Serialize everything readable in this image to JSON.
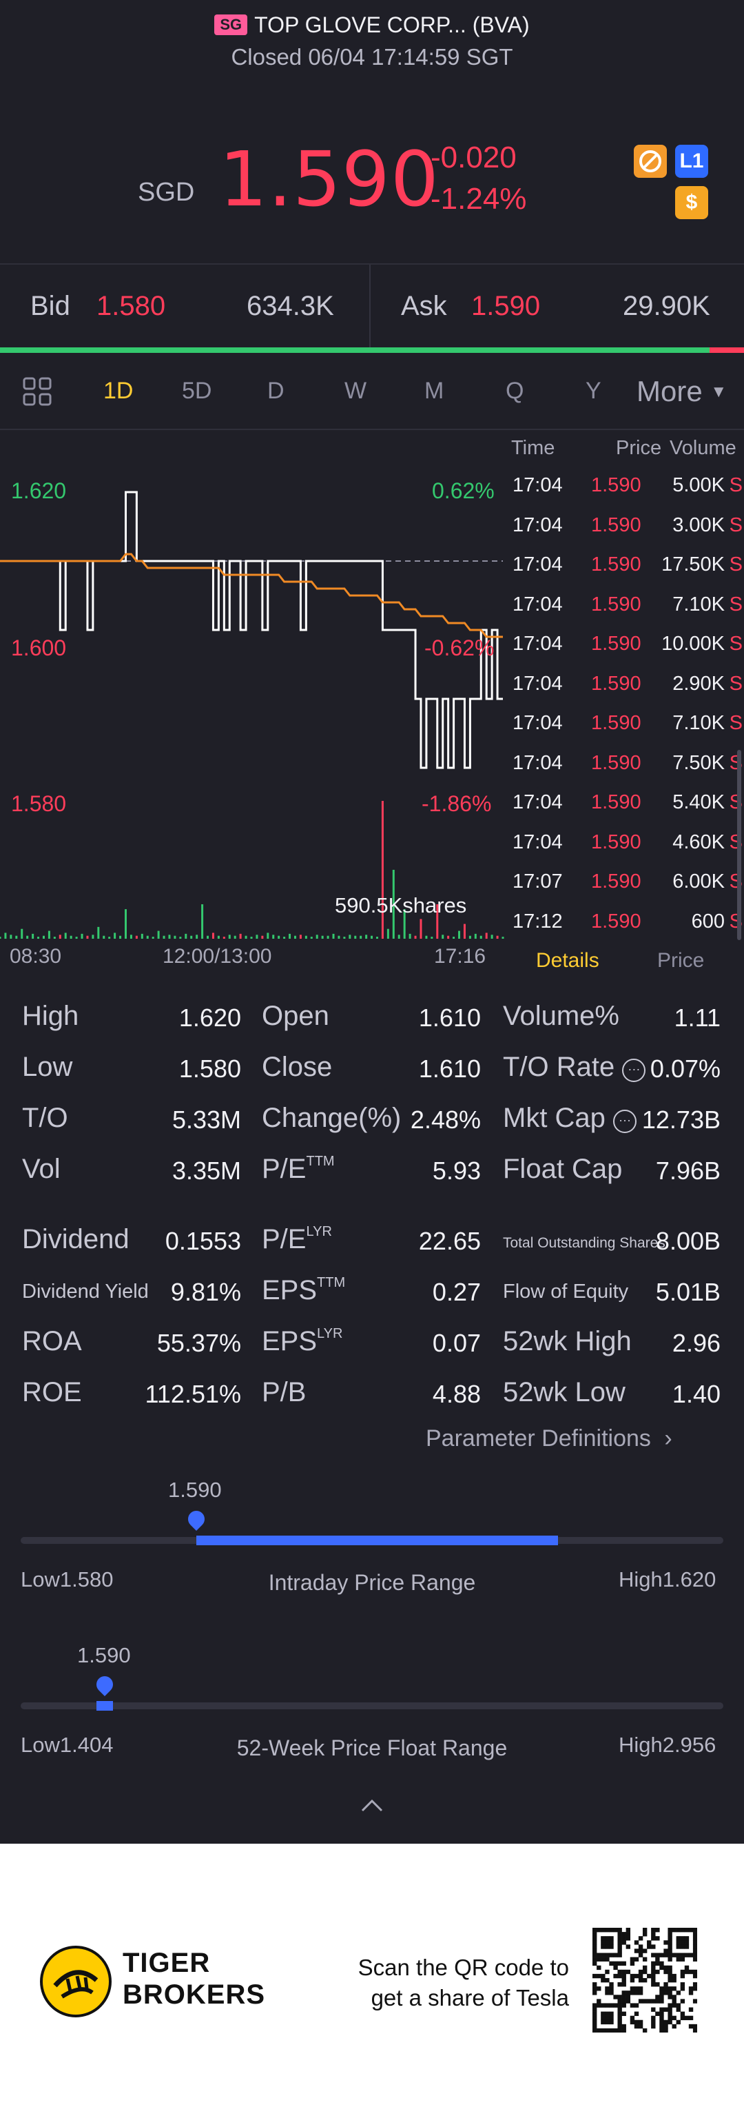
{
  "header": {
    "market_badge": "SG",
    "title": "TOP GLOVE CORP... (BVA)",
    "status": "Closed 06/04 17:14:59 SGT"
  },
  "quote": {
    "currency": "SGD",
    "price": "1.590",
    "change": "-0.020",
    "change_pct": "-1.24%",
    "badges": [
      {
        "icon": "no-short-icon",
        "text": ""
      },
      {
        "icon": "level1-icon",
        "text": "L1"
      },
      {
        "icon": "dollar-icon",
        "text": "$"
      }
    ]
  },
  "bid_ask": {
    "bid_label": "Bid",
    "bid_price": "1.580",
    "bid_size": "634.3K",
    "ask_label": "Ask",
    "ask_price": "1.590",
    "ask_size": "29.90K",
    "bid_share": 0.954
  },
  "tabs": {
    "items": [
      "1D",
      "5D",
      "D",
      "W",
      "M",
      "Q",
      "Y"
    ],
    "active": "1D",
    "more_label": "More"
  },
  "chart_data": {
    "type": "line",
    "y_labels": [
      "1.620",
      "1.600",
      "1.580"
    ],
    "pct_labels": [
      "0.62%",
      "-0.62%",
      "-1.86%"
    ],
    "x_labels": [
      "08:30",
      "12:00/13:00",
      "17:16"
    ],
    "ylim": [
      1.575,
      1.625
    ],
    "prev_close": 1.61,
    "volume_label": "590.5Kshares",
    "price_series": [
      1.61,
      1.61,
      1.61,
      1.61,
      1.61,
      1.61,
      1.61,
      1.61,
      1.61,
      1.61,
      1.61,
      1.6,
      1.61,
      1.61,
      1.61,
      1.61,
      1.6,
      1.61,
      1.61,
      1.61,
      1.61,
      1.61,
      1.61,
      1.62,
      1.62,
      1.61,
      1.61,
      1.61,
      1.61,
      1.61,
      1.61,
      1.61,
      1.61,
      1.61,
      1.61,
      1.61,
      1.61,
      1.61,
      1.61,
      1.6,
      1.61,
      1.6,
      1.61,
      1.61,
      1.6,
      1.61,
      1.61,
      1.61,
      1.6,
      1.61,
      1.61,
      1.61,
      1.61,
      1.61,
      1.61,
      1.6,
      1.61,
      1.61,
      1.61,
      1.61,
      1.61,
      1.61,
      1.61,
      1.61,
      1.61,
      1.61,
      1.61,
      1.61,
      1.61,
      1.61,
      1.6,
      1.6,
      1.6,
      1.6,
      1.6,
      1.6,
      1.59,
      1.58,
      1.59,
      1.59,
      1.58,
      1.59,
      1.58,
      1.59,
      1.59,
      1.58,
      1.59,
      1.59,
      1.6,
      1.59,
      1.6,
      1.59,
      1.59
    ],
    "avg_series": [
      1.61,
      1.61,
      1.61,
      1.61,
      1.61,
      1.61,
      1.61,
      1.61,
      1.61,
      1.61,
      1.61,
      1.61,
      1.61,
      1.61,
      1.61,
      1.61,
      1.61,
      1.61,
      1.61,
      1.61,
      1.61,
      1.61,
      1.61,
      1.611,
      1.611,
      1.61,
      1.61,
      1.609,
      1.609,
      1.609,
      1.609,
      1.609,
      1.609,
      1.609,
      1.609,
      1.609,
      1.609,
      1.609,
      1.609,
      1.609,
      1.609,
      1.608,
      1.608,
      1.608,
      1.608,
      1.608,
      1.608,
      1.608,
      1.608,
      1.608,
      1.608,
      1.608,
      1.607,
      1.607,
      1.607,
      1.607,
      1.607,
      1.607,
      1.606,
      1.606,
      1.606,
      1.606,
      1.606,
      1.606,
      1.605,
      1.605,
      1.605,
      1.605,
      1.605,
      1.605,
      1.604,
      1.604,
      1.604,
      1.604,
      1.603,
      1.603,
      1.603,
      1.602,
      1.602,
      1.602,
      1.602,
      1.602,
      1.601,
      1.601,
      1.601,
      1.601,
      1.6,
      1.6,
      1.6,
      1.599,
      1.599,
      1.599,
      1.599
    ],
    "volume_series": [
      2,
      6,
      4,
      3,
      10,
      3,
      5,
      2,
      3,
      8,
      2,
      4,
      6,
      3,
      2,
      5,
      3,
      4,
      12,
      3,
      2,
      6,
      3,
      30,
      4,
      3,
      5,
      3,
      2,
      8,
      3,
      4,
      3,
      2,
      5,
      3,
      4,
      35,
      3,
      6,
      3,
      2,
      4,
      3,
      5,
      3,
      2,
      4,
      3,
      6,
      4,
      3,
      2,
      5,
      3,
      4,
      3,
      2,
      4,
      3,
      3,
      5,
      3,
      2,
      4,
      3,
      3,
      4,
      3,
      2,
      140,
      10,
      70,
      4,
      30,
      5,
      3,
      20,
      3,
      2,
      35,
      4,
      3,
      2,
      8,
      15,
      3,
      5,
      3,
      6,
      4,
      3,
      2
    ]
  },
  "ticks": {
    "headers": {
      "time": "Time",
      "price": "Price",
      "volume": "Volume"
    },
    "rows": [
      {
        "time": "17:04",
        "price": "1.590",
        "vol": "5.00K",
        "side": "S"
      },
      {
        "time": "17:04",
        "price": "1.590",
        "vol": "3.00K",
        "side": "S"
      },
      {
        "time": "17:04",
        "price": "1.590",
        "vol": "17.50K",
        "side": "S"
      },
      {
        "time": "17:04",
        "price": "1.590",
        "vol": "7.10K",
        "side": "S"
      },
      {
        "time": "17:04",
        "price": "1.590",
        "vol": "10.00K",
        "side": "S"
      },
      {
        "time": "17:04",
        "price": "1.590",
        "vol": "2.90K",
        "side": "S"
      },
      {
        "time": "17:04",
        "price": "1.590",
        "vol": "7.10K",
        "side": "S"
      },
      {
        "time": "17:04",
        "price": "1.590",
        "vol": "7.50K",
        "side": "S"
      },
      {
        "time": "17:04",
        "price": "1.590",
        "vol": "5.40K",
        "side": "S"
      },
      {
        "time": "17:04",
        "price": "1.590",
        "vol": "4.60K",
        "side": "S"
      },
      {
        "time": "17:07",
        "price": "1.590",
        "vol": "6.00K",
        "side": "S"
      },
      {
        "time": "17:12",
        "price": "1.590",
        "vol": "600",
        "side": "S"
      }
    ],
    "tab_details": "Details",
    "tab_price": "Price"
  },
  "stats": {
    "col1": [
      {
        "label": "High",
        "value": "1.620"
      },
      {
        "label": "Low",
        "value": "1.580"
      },
      {
        "label": "T/O",
        "value": "5.33M"
      },
      {
        "label": "Vol",
        "value": "3.35M"
      }
    ],
    "col2": [
      {
        "label": "Open",
        "value": "1.610"
      },
      {
        "label": "Close",
        "value": "1.610"
      },
      {
        "label": "Change(%)",
        "value": "2.48%"
      },
      {
        "label": "P/E",
        "sup": "TTM",
        "value": "5.93"
      }
    ],
    "col3": [
      {
        "label": "Volume%",
        "value": "1.11"
      },
      {
        "label": "T/O Rate",
        "value": "0.07%"
      },
      {
        "label": "Mkt Cap",
        "value": "12.73B"
      },
      {
        "label": "Float Cap",
        "value": "7.96B"
      }
    ],
    "col1b": [
      {
        "label": "Dividend",
        "value": "0.1553"
      },
      {
        "label": "Dividend Yield",
        "value": "9.81%"
      },
      {
        "label": "ROA",
        "value": "55.37%"
      },
      {
        "label": "ROE",
        "value": "112.51%"
      }
    ],
    "col2b": [
      {
        "label": "P/E",
        "sup": "LYR",
        "value": "22.65"
      },
      {
        "label": "EPS",
        "sup": "TTM",
        "value": "0.27"
      },
      {
        "label": "EPS",
        "sup": "LYR",
        "value": "0.07"
      },
      {
        "label": "P/B",
        "value": "4.88"
      }
    ],
    "col3b": [
      {
        "label": "Total Outstanding Shares",
        "value": "8.00B"
      },
      {
        "label": "Flow of Equity",
        "value": "5.01B"
      },
      {
        "label": "52wk High",
        "value": "2.96"
      },
      {
        "label": "52wk Low",
        "value": "1.40"
      }
    ],
    "param_link": "Parameter Definitions"
  },
  "intraday_range": {
    "current": "1.590",
    "low_label": "Low1.580",
    "high_label": "High1.620",
    "title": "Intraday Price Range",
    "low": 1.58,
    "high": 1.62,
    "value": 1.59
  },
  "week52_range": {
    "current": "1.590",
    "low_label": "Low1.404",
    "high_label": "High2.956",
    "title": "52-Week Price Float Range",
    "low": 1.404,
    "high": 2.956,
    "value": 1.59
  },
  "footer": {
    "brand_line1": "TIGER",
    "brand_line2": "BROKERS",
    "msg_line1": "Scan the QR code to",
    "msg_line2": "get a share of Tesla"
  }
}
